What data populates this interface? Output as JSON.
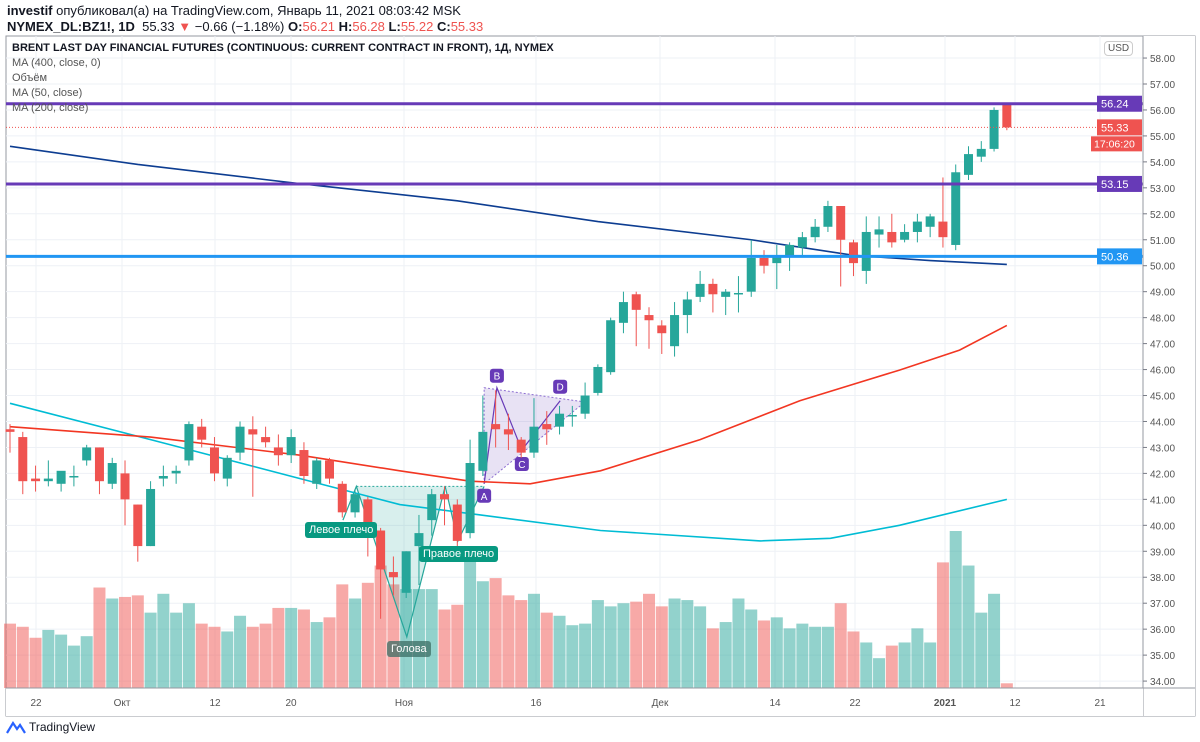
{
  "header": {
    "author": "investif",
    "published_text": "опубликовал(а) на TradingView.com, Январь 11, 2021 08:03:42 MSK",
    "symbol": "NYMEX_DL:BZ1!, 1D",
    "last": "55.33",
    "change": "−0.66 (−1.18%)",
    "open_label": "O:",
    "open": "56.21",
    "high_label": "H:",
    "high": "56.28",
    "low_label": "L:",
    "low": "55.22",
    "close_label": "C:",
    "close": "55.33"
  },
  "legend": {
    "title": "BRENT LAST DAY FINANCIAL FUTURES (CONTINUOUS: CURRENT CONTRACT IN FRONT), 1Д, NYMEX",
    "items": [
      "MA (400, close, 0)",
      "Объём",
      "MA (50, close)",
      "MA (200, close)"
    ]
  },
  "price_axis": {
    "currency": "USD",
    "ticks": [
      "58.00",
      "57.00",
      "56.00",
      "55.00",
      "54.00",
      "53.00",
      "52.00",
      "51.00",
      "50.00",
      "49.00",
      "48.00",
      "47.00",
      "46.00",
      "45.00",
      "44.00",
      "43.00",
      "42.00",
      "41.00",
      "40.00",
      "39.00",
      "38.00",
      "37.00",
      "36.00",
      "35.00",
      "34.00"
    ],
    "current_price": "55.33",
    "countdown": "17:06:20"
  },
  "time_axis": {
    "labels": [
      "22",
      "Окт",
      "12",
      "20",
      "Ноя",
      "16",
      "Дек",
      "14",
      "22",
      "2021",
      "12",
      "21"
    ]
  },
  "levels": [
    {
      "price": 56.24,
      "label": "56.24",
      "color": "#673ab7"
    },
    {
      "price": 53.15,
      "label": "53.15",
      "color": "#673ab7"
    },
    {
      "price": 50.36,
      "label": "50.36",
      "color": "#2196f3"
    }
  ],
  "annotations": {
    "left_shoulder": "Левое плечо",
    "head": "Голова",
    "right_shoulder": "Правое плечо",
    "abcd": [
      "A",
      "B",
      "C",
      "D"
    ]
  },
  "colors": {
    "up": "#26a69a",
    "down": "#ef5350",
    "ma400": "#0d3d91",
    "ma200": "#00bcd4",
    "ma50": "#f23622",
    "pattern": "#673ab7"
  },
  "chart_data": {
    "type": "candlestick",
    "ylim": [
      33.6,
      58.2
    ],
    "ohlc": [
      [
        43.7,
        43.9,
        42.8,
        43.6
      ],
      [
        43.4,
        43.6,
        41.2,
        41.7
      ],
      [
        41.8,
        42.3,
        41.3,
        41.7
      ],
      [
        41.7,
        42.5,
        41.5,
        41.8
      ],
      [
        41.6,
        42.0,
        41.3,
        42.1
      ],
      [
        41.9,
        42.3,
        41.5,
        41.9
      ],
      [
        42.5,
        43.1,
        42.3,
        43.0
      ],
      [
        43.0,
        43.0,
        41.2,
        41.7
      ],
      [
        41.6,
        42.6,
        41.4,
        42.4
      ],
      [
        42.0,
        42.5,
        40.0,
        41.0
      ],
      [
        40.8,
        40.8,
        38.6,
        39.2
      ],
      [
        39.2,
        41.7,
        39.2,
        41.4
      ],
      [
        41.8,
        42.3,
        41.5,
        41.9
      ],
      [
        42.0,
        42.3,
        41.6,
        42.1
      ],
      [
        42.5,
        44.0,
        42.3,
        43.9
      ],
      [
        43.8,
        44.1,
        43.0,
        43.3
      ],
      [
        43.0,
        43.4,
        41.7,
        42.0
      ],
      [
        41.8,
        42.7,
        41.5,
        42.6
      ],
      [
        42.8,
        44.0,
        42.5,
        43.8
      ],
      [
        43.7,
        44.2,
        41.1,
        43.5
      ],
      [
        43.4,
        43.8,
        43.0,
        43.2
      ],
      [
        43.0,
        43.5,
        42.3,
        42.7
      ],
      [
        42.7,
        43.7,
        42.4,
        43.4
      ],
      [
        42.9,
        43.2,
        41.6,
        41.9
      ],
      [
        41.6,
        42.6,
        41.4,
        42.5
      ],
      [
        42.5,
        42.6,
        41.6,
        41.8
      ],
      [
        41.6,
        41.7,
        40.3,
        40.5
      ],
      [
        40.5,
        41.4,
        40.3,
        41.2
      ],
      [
        41.0,
        41.1,
        38.8,
        39.7
      ],
      [
        39.8,
        39.9,
        36.4,
        38.3
      ],
      [
        38.2,
        38.8,
        37.3,
        38.0
      ],
      [
        37.4,
        39.0,
        37.2,
        39.0
      ],
      [
        39.2,
        40.4,
        37.7,
        39.7
      ],
      [
        40.2,
        41.4,
        39.6,
        41.2
      ],
      [
        41.2,
        41.5,
        40.0,
        41.0
      ],
      [
        40.8,
        41.0,
        39.1,
        39.4
      ],
      [
        39.7,
        43.3,
        39.5,
        42.4
      ],
      [
        42.1,
        45.0,
        41.9,
        43.6
      ],
      [
        43.9,
        45.2,
        43.0,
        43.7
      ],
      [
        43.7,
        44.3,
        42.9,
        43.5
      ],
      [
        43.3,
        43.4,
        42.6,
        42.8
      ],
      [
        42.8,
        44.9,
        42.6,
        43.8
      ],
      [
        43.9,
        44.4,
        43.1,
        43.7
      ],
      [
        43.8,
        44.6,
        43.5,
        44.3
      ],
      [
        44.2,
        44.6,
        43.8,
        44.25
      ],
      [
        44.3,
        45.5,
        44.1,
        45.0
      ],
      [
        45.1,
        46.2,
        45.0,
        46.1
      ],
      [
        45.9,
        48.0,
        45.8,
        47.9
      ],
      [
        47.8,
        49.0,
        47.4,
        48.6
      ],
      [
        48.9,
        49.0,
        46.9,
        48.3
      ],
      [
        48.1,
        48.4,
        46.8,
        47.9
      ],
      [
        47.7,
        47.9,
        46.6,
        47.4
      ],
      [
        46.9,
        48.6,
        46.5,
        48.1
      ],
      [
        48.1,
        49.0,
        47.4,
        48.7
      ],
      [
        48.8,
        49.8,
        48.6,
        49.3
      ],
      [
        49.3,
        49.5,
        48.2,
        48.9
      ],
      [
        48.8,
        49.1,
        48.1,
        49.0
      ],
      [
        48.9,
        49.6,
        48.2,
        48.95
      ],
      [
        49.0,
        51.0,
        48.8,
        50.3
      ],
      [
        50.3,
        50.6,
        49.7,
        50.0
      ],
      [
        50.1,
        50.8,
        49.1,
        50.4
      ],
      [
        50.4,
        50.9,
        49.8,
        50.8
      ],
      [
        50.7,
        51.3,
        50.4,
        51.1
      ],
      [
        51.1,
        51.8,
        50.9,
        51.5
      ],
      [
        51.5,
        52.5,
        51.3,
        52.3
      ],
      [
        52.3,
        52.3,
        49.2,
        51.0
      ],
      [
        50.9,
        51.0,
        49.6,
        50.1
      ],
      [
        49.8,
        51.9,
        49.3,
        51.3
      ],
      [
        51.2,
        51.9,
        50.7,
        51.4
      ],
      [
        51.3,
        52.0,
        50.7,
        50.9
      ],
      [
        51.0,
        51.6,
        50.9,
        51.3
      ],
      [
        51.3,
        52.0,
        50.9,
        51.7
      ],
      [
        51.5,
        52.0,
        51.1,
        51.9
      ],
      [
        51.7,
        53.4,
        50.7,
        51.1
      ],
      [
        50.8,
        53.9,
        50.6,
        53.6
      ],
      [
        53.5,
        54.6,
        53.3,
        54.3
      ],
      [
        54.2,
        54.8,
        54.0,
        54.5
      ],
      [
        54.5,
        56.1,
        54.4,
        56.0
      ],
      [
        56.21,
        56.28,
        55.22,
        55.33
      ]
    ],
    "volume_relative": [
      41,
      39,
      32,
      37,
      34,
      27,
      33,
      64,
      57,
      58,
      59,
      48,
      60,
      48,
      54,
      41,
      39,
      36,
      46,
      39,
      41,
      51,
      51,
      50,
      42,
      45,
      66,
      57,
      67,
      78,
      66,
      63,
      63,
      63,
      50,
      53,
      85,
      68,
      70,
      59,
      56,
      60,
      48,
      46,
      40,
      41,
      56,
      52,
      54,
      55,
      60,
      52,
      57,
      56,
      52,
      38,
      42,
      57,
      50,
      43,
      45,
      38,
      41,
      39,
      39,
      54,
      36,
      29,
      19,
      27,
      29,
      38,
      29,
      80,
      100,
      78,
      48,
      60,
      3
    ],
    "ma400": [
      [
        0,
        54.6
      ],
      [
        10,
        53.9
      ],
      [
        22,
        53.2
      ],
      [
        35,
        52.5
      ],
      [
        46,
        51.7
      ],
      [
        58,
        51.0
      ],
      [
        66,
        50.4
      ],
      [
        72,
        50.2
      ],
      [
        78,
        50.05
      ]
    ],
    "ma200": [
      [
        0,
        44.7
      ],
      [
        11,
        43.3
      ],
      [
        22.7,
        41.8
      ],
      [
        30.5,
        40.8
      ],
      [
        36.8,
        40.4
      ],
      [
        46.2,
        39.8
      ],
      [
        58.7,
        39.4
      ],
      [
        64.2,
        39.5
      ],
      [
        69.6,
        40.0
      ],
      [
        78,
        41.0
      ]
    ],
    "ma50": [
      [
        0,
        43.8
      ],
      [
        11,
        43.4
      ],
      [
        22.7,
        42.7
      ],
      [
        30.5,
        42.1
      ],
      [
        36,
        41.7
      ],
      [
        40.7,
        41.6
      ],
      [
        46.2,
        42.1
      ],
      [
        54,
        43.3
      ],
      [
        61.8,
        44.8
      ],
      [
        69.6,
        45.98
      ],
      [
        74.3,
        46.75
      ],
      [
        78,
        47.7
      ]
    ],
    "head_shoulders": [
      [
        26.05,
        40.2
      ],
      [
        27.1,
        41.5
      ],
      [
        31.05,
        35.7
      ],
      [
        34.05,
        41.5
      ],
      [
        35.05,
        39.4
      ],
      [
        37.1,
        41.5
      ]
    ],
    "abcd_points": [
      [
        37.1,
        41.6
      ],
      [
        38.1,
        45.3
      ],
      [
        40.05,
        42.9
      ],
      [
        43.05,
        44.8
      ]
    ]
  }
}
